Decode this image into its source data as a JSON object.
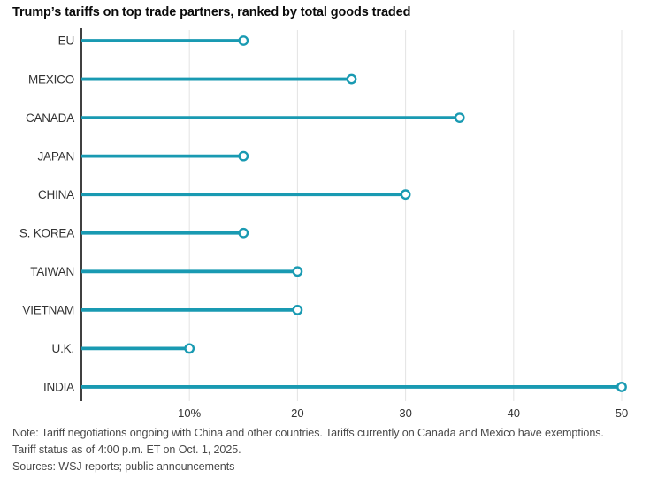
{
  "header": {
    "title": "Trump’s tariffs on top trade partners, ranked by total goods traded"
  },
  "chart_data": {
    "type": "bar",
    "variant": "horizontal-lollipop",
    "title": "Trump’s tariffs on top trade partners, ranked by total goods traded",
    "categories": [
      "EU",
      "MEXICO",
      "CANADA",
      "JAPAN",
      "CHINA",
      "S. KOREA",
      "TAIWAN",
      "VIETNAM",
      "U.K.",
      "INDIA"
    ],
    "values": [
      15,
      25,
      35,
      15,
      30,
      15,
      20,
      20,
      10,
      50
    ],
    "unit": "%",
    "xlabel": "",
    "ylabel": "",
    "xlim": [
      0,
      50
    ],
    "xticks": [
      10,
      20,
      30,
      40,
      50
    ],
    "xtick_labels": [
      "10%",
      "20",
      "30",
      "40",
      "50"
    ],
    "grid": "vertical",
    "legend": "none",
    "colors": {
      "accent": "#199AB2",
      "axis": "#000000",
      "gridline": "#E3E3E3",
      "category_label": "#333333",
      "tick_label": "#333333"
    }
  },
  "footer": {
    "note_lines": [
      "Note: Tariff negotiations ongoing with China and other countries. Tariffs currently on Canada and Mexico have exemptions.",
      "Tariff status as of 4:00 p.m. ET on Oct. 1, 2025."
    ],
    "sources": "Sources: WSJ reports; public announcements"
  }
}
